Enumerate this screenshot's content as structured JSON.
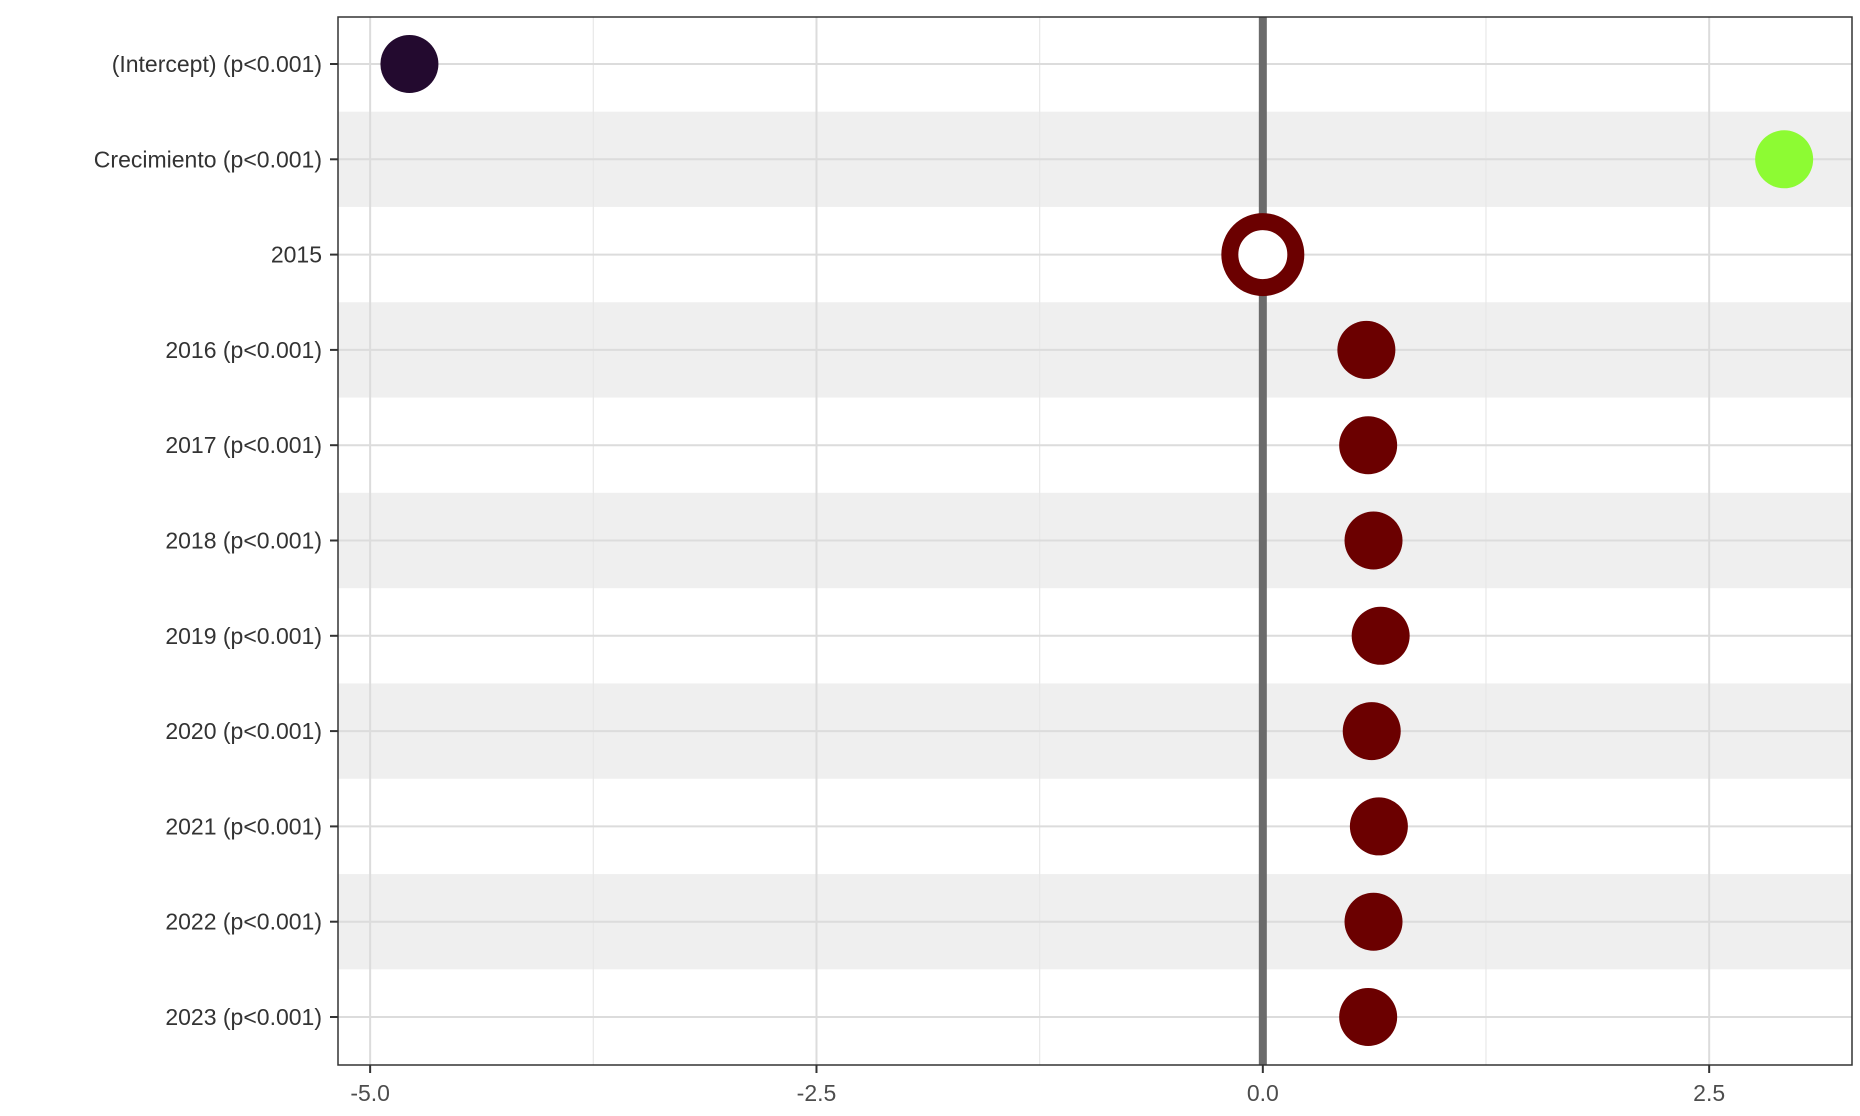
{
  "chart_data": {
    "type": "scatter",
    "title": "",
    "xlabel": "",
    "ylabel": "",
    "xlim": [
      -5.18,
      3.3
    ],
    "x_ticks": [
      {
        "value": -5.0,
        "label": "-5.0"
      },
      {
        "value": -2.5,
        "label": "-2.5"
      },
      {
        "value": 0.0,
        "label": "0.0"
      },
      {
        "value": 2.5,
        "label": "2.5"
      }
    ],
    "x_minor_ticks": [
      -3.75,
      -1.25,
      1.25
    ],
    "reference_line": 0,
    "grid": true,
    "striped_rows": true,
    "categories": [
      "(Intercept) (p<0.001)",
      "Crecimiento (p<0.001)",
      "2015",
      "2016 (p<0.001)",
      "2017 (p<0.001)",
      "2018 (p<0.001)",
      "2019 (p<0.001)",
      "2020 (p<0.001)",
      "2021 (p<0.001)",
      "2022 (p<0.001)",
      "2023 (p<0.001)"
    ],
    "values": [
      -4.78,
      2.92,
      0.0,
      0.58,
      0.59,
      0.62,
      0.66,
      0.61,
      0.65,
      0.62,
      0.59
    ],
    "reference_level": "2015",
    "point_colors": [
      "#230a2f",
      "#8dfb33",
      "#6b0000",
      "#6b0000",
      "#6b0000",
      "#6b0000",
      "#6b0000",
      "#6b0000",
      "#6b0000",
      "#6b0000",
      "#6b0000"
    ]
  }
}
